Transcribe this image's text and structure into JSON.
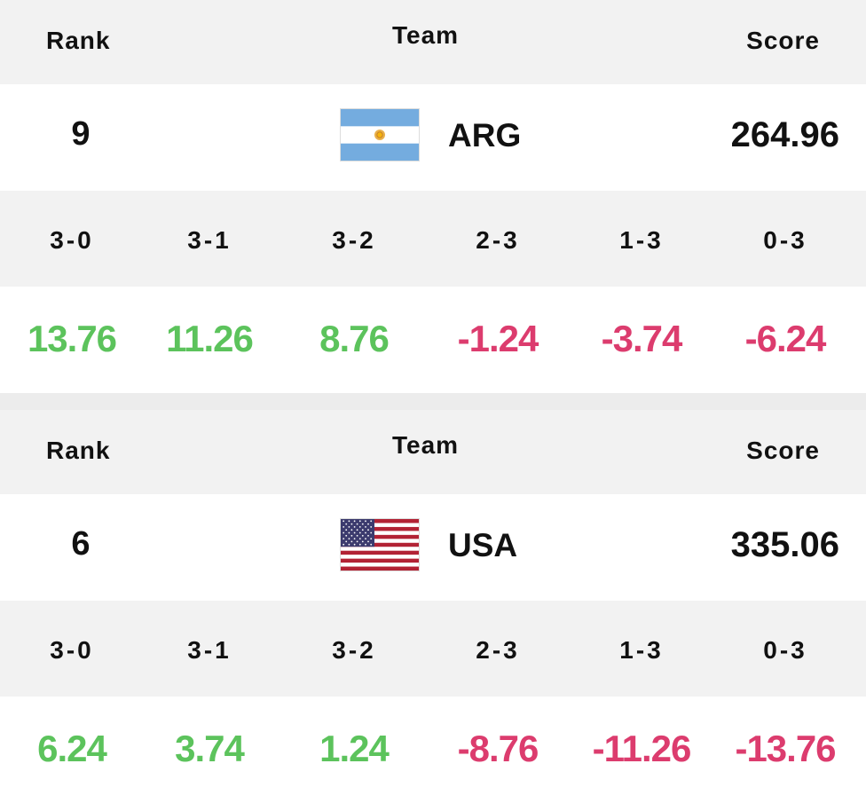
{
  "colors": {
    "positive": "#5cc35c",
    "negative": "#dc3c6e",
    "header_bg": "#f2f2f2"
  },
  "labels": {
    "rank": "Rank",
    "team": "Team",
    "score": "Score"
  },
  "cards": [
    {
      "rank": "9",
      "team_code": "ARG",
      "flag_icon": "argentina-flag-icon",
      "score": "264.96",
      "outcomes": [
        "3-0",
        "3-1",
        "3-2",
        "2-3",
        "1-3",
        "0-3"
      ],
      "deltas": [
        "13.76",
        "11.26",
        "8.76",
        "-1.24",
        "-3.74",
        "-6.24"
      ]
    },
    {
      "rank": "6",
      "team_code": "USA",
      "flag_icon": "usa-flag-icon",
      "score": "335.06",
      "outcomes": [
        "3-0",
        "3-1",
        "3-2",
        "2-3",
        "1-3",
        "0-3"
      ],
      "deltas": [
        "6.24",
        "3.74",
        "1.24",
        "-8.76",
        "-11.26",
        "-13.76"
      ]
    }
  ]
}
